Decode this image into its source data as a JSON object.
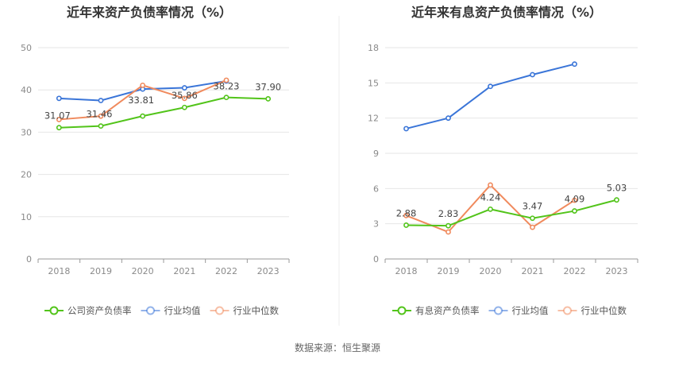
{
  "source_label": "数据来源：恒生聚源",
  "chart_data": [
    {
      "type": "line",
      "title": "近年来资产负债率情况（%）",
      "categories": [
        "2018",
        "2019",
        "2020",
        "2021",
        "2022",
        "2023"
      ],
      "ylim": [
        0,
        50
      ],
      "yticks": [
        0,
        10,
        20,
        30,
        40,
        50
      ],
      "grid": true,
      "legend_position": "bottom",
      "series": [
        {
          "name": "公司资产负债率",
          "color": "#52c41a",
          "values": [
            31.07,
            31.46,
            33.81,
            35.86,
            38.23,
            37.9
          ],
          "labels": [
            "31.07",
            "31.46",
            "33.81",
            "35.86",
            "38.23",
            "37.90"
          ]
        },
        {
          "name": "行业均值",
          "color": "#3a75d8",
          "values": [
            38.0,
            37.5,
            40.2,
            40.5,
            42.1,
            null
          ]
        },
        {
          "name": "行业中位数",
          "color": "#f08a5d",
          "values": [
            33.0,
            33.8,
            41.1,
            38.0,
            42.3,
            null
          ]
        }
      ]
    },
    {
      "type": "line",
      "title": "近年来有息资产负债率情况（%）",
      "categories": [
        "2018",
        "2019",
        "2020",
        "2021",
        "2022",
        "2023"
      ],
      "ylim": [
        0,
        18
      ],
      "yticks": [
        0,
        3,
        6,
        9,
        12,
        15,
        18
      ],
      "grid": true,
      "legend_position": "bottom",
      "series": [
        {
          "name": "有息资产负债率",
          "color": "#52c41a",
          "values": [
            2.88,
            2.83,
            4.24,
            3.47,
            4.09,
            5.03
          ],
          "labels": [
            "2.88",
            "2.83",
            "4.24",
            "3.47",
            "4.09",
            "5.03"
          ]
        },
        {
          "name": "行业均值",
          "color": "#3a75d8",
          "values": [
            11.1,
            12.0,
            14.7,
            15.7,
            16.6,
            null
          ]
        },
        {
          "name": "行业中位数",
          "color": "#f08a5d",
          "values": [
            3.7,
            2.3,
            6.3,
            2.7,
            5.0,
            null
          ]
        }
      ]
    }
  ]
}
